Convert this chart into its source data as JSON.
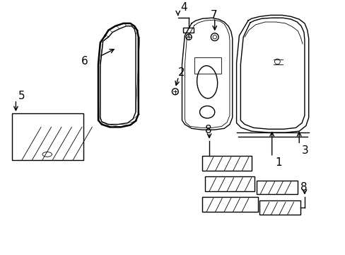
{
  "bg_color": "#ffffff",
  "line_color": "#000000",
  "lw": 1.0,
  "lw2": 1.8,
  "lw_thin": 0.6,
  "label_fontsize": 11
}
